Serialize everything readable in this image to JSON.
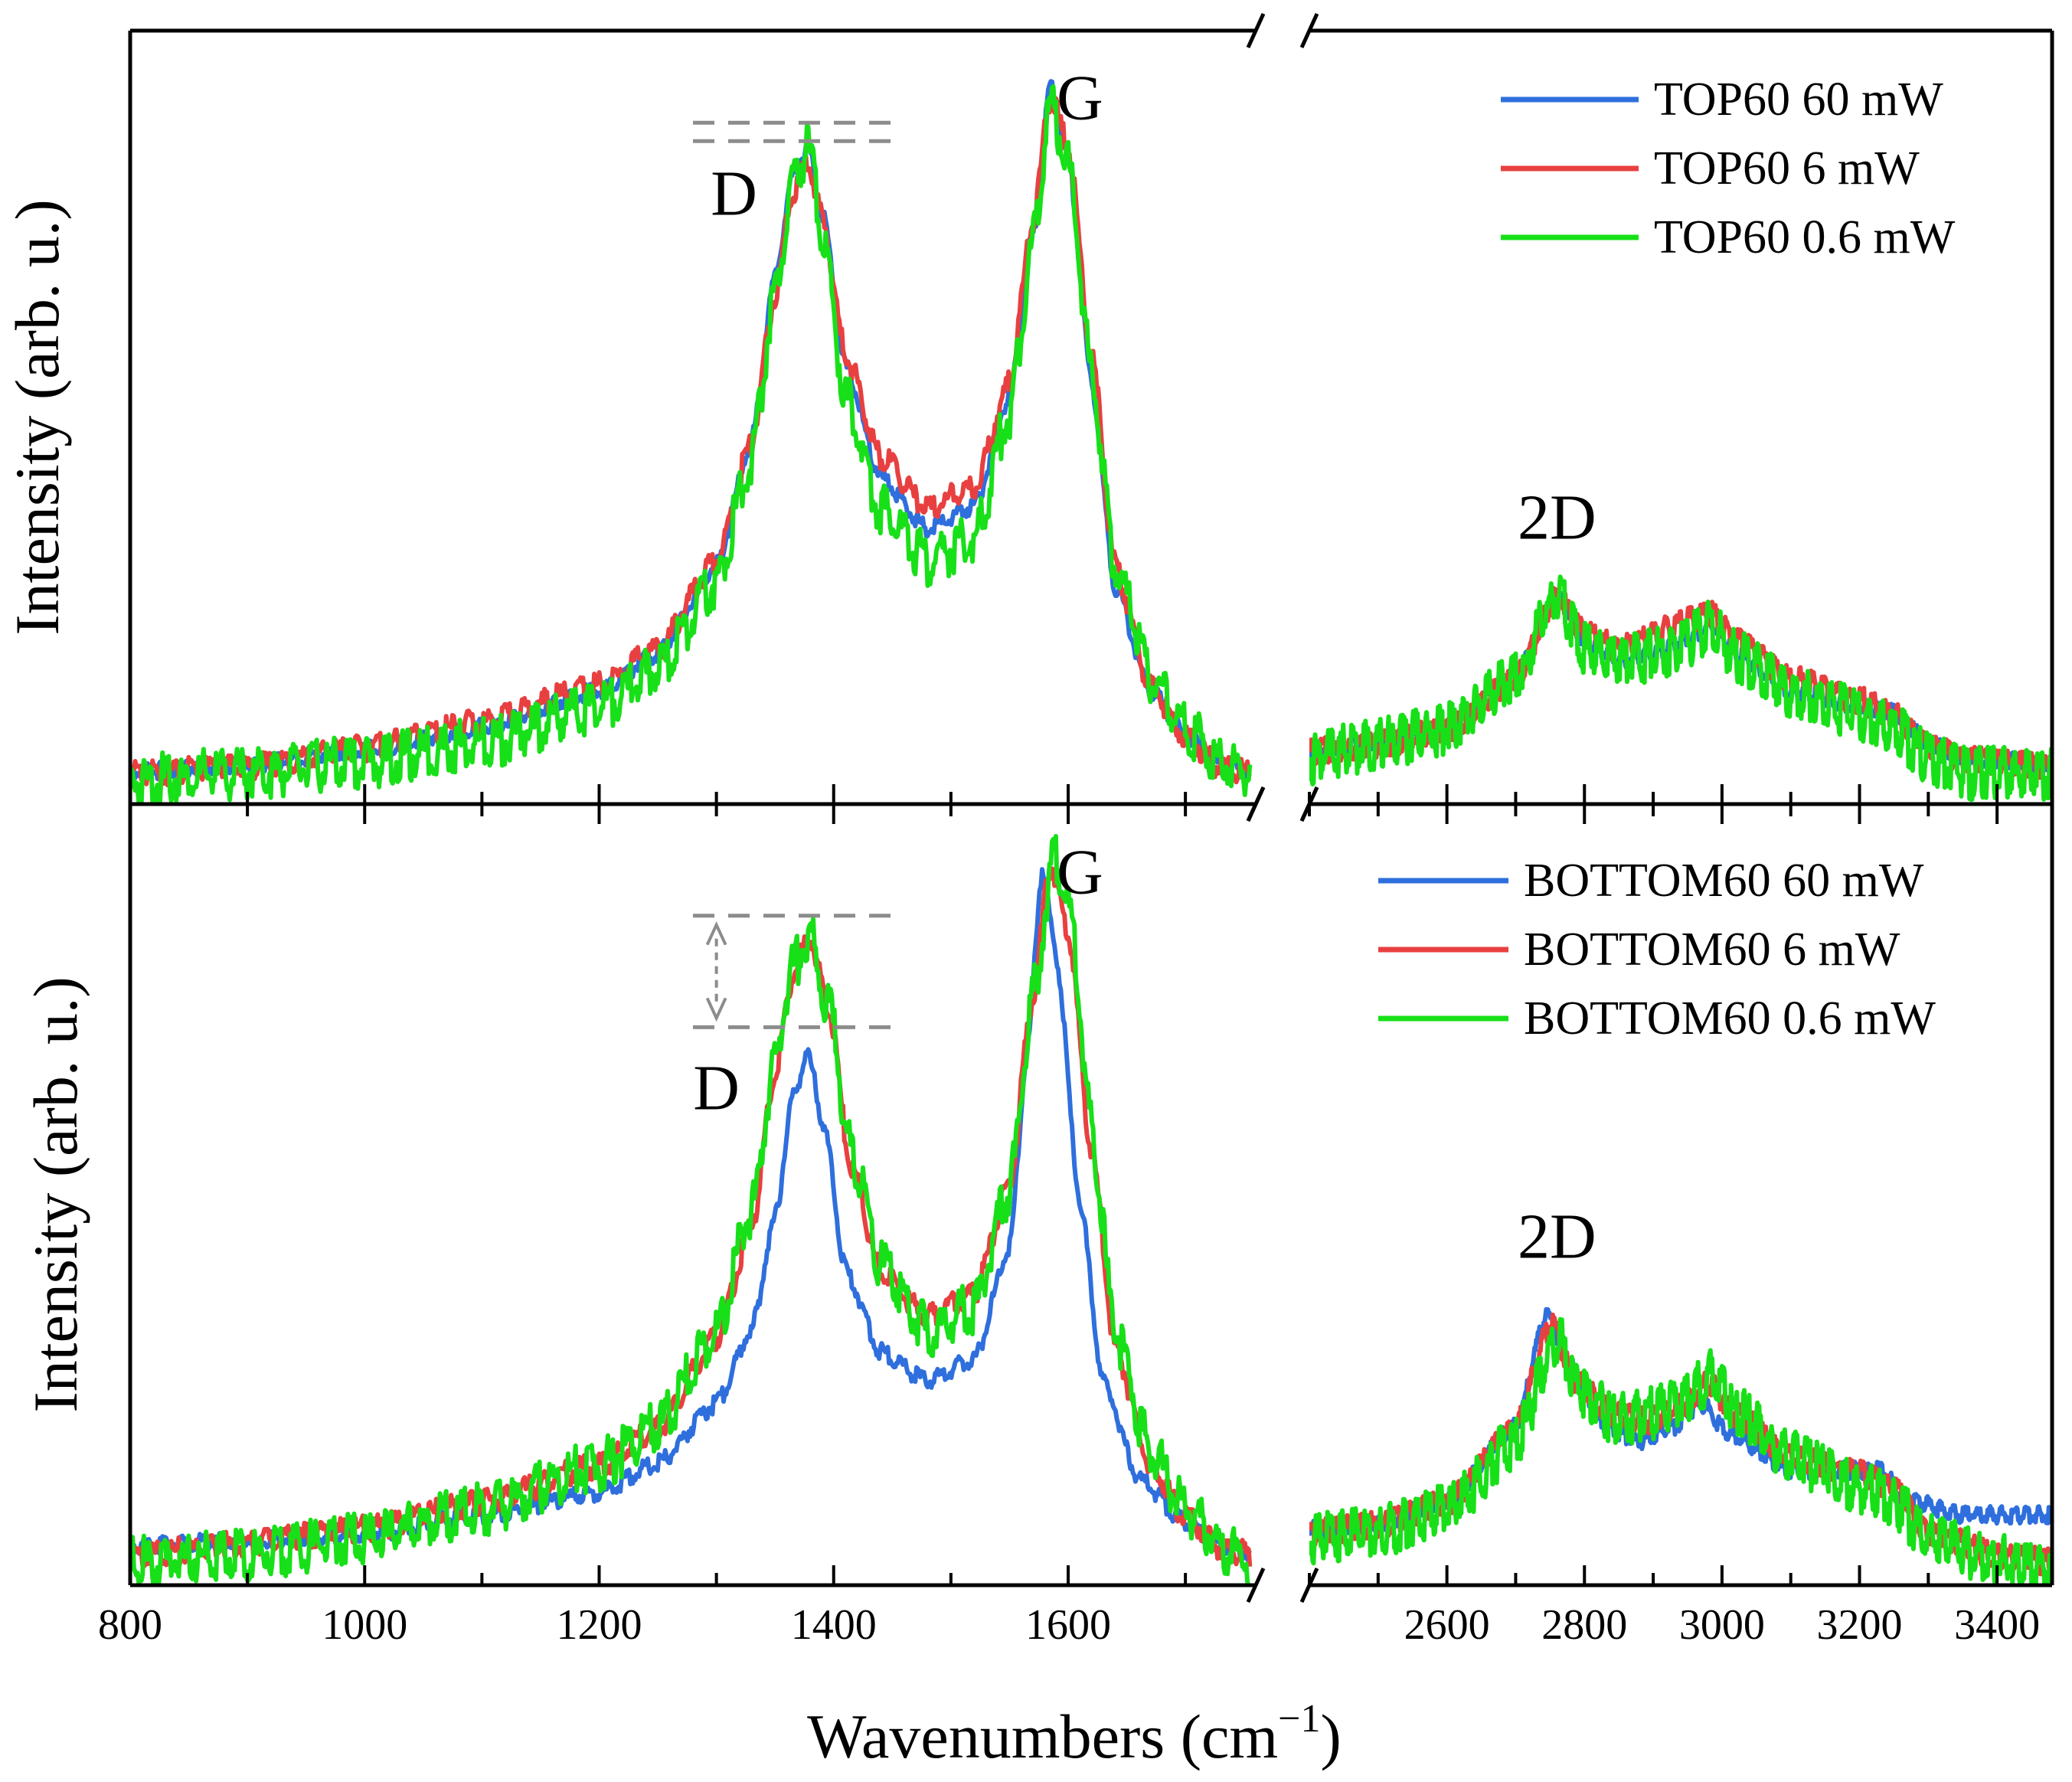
{
  "chart_data": {
    "type": "line",
    "xlabel_main": "Wavenumbers (cm",
    "xlabel_sup": "−1",
    "xlabel_close": ")",
    "x_segments": [
      {
        "xlim": [
          800,
          1760
        ],
        "ticks": [
          800,
          1000,
          1200,
          1400,
          1600
        ],
        "tick_labels": [
          "800",
          "1000",
          "1200",
          "1400",
          "1600"
        ]
      },
      {
        "xlim": [
          2400,
          3480
        ],
        "ticks": [
          2600,
          2800,
          3000,
          3200,
          3400
        ],
        "tick_labels": [
          "2600",
          "2800",
          "3000",
          "3200",
          "3400"
        ]
      }
    ],
    "panels": [
      {
        "id": "top",
        "ylabel": "Intensity (arb. u.)",
        "ylim": [
          0,
          1.05
        ],
        "peak_labels": [
          {
            "text": "D",
            "x": 1315,
            "y": 0.8
          },
          {
            "text": "G",
            "x": 1610,
            "y": 0.93
          },
          {
            "text": "2D",
            "x": 2760,
            "y": 0.36
          }
        ],
        "dashed_reference": {
          "x_range": [
            1280,
            1460
          ],
          "y": [
            0.925,
            0.9
          ]
        },
        "legend": {
          "position": "top-right",
          "entries": [
            "TOP60 60 mW",
            "TOP60 6 mW",
            "TOP60 0.6 mW"
          ]
        },
        "series": [
          {
            "name": "TOP60 60 mW",
            "color": "#2f6fdd",
            "segments": [
              {
                "x": [
                  800,
                  900,
                  1000,
                  1100,
                  1200,
                  1250,
                  1300,
                  1330,
                  1350,
                  1365,
                  1378,
                  1390,
                  1410,
                  1440,
                  1480,
                  1520,
                  1550,
                  1570,
                  1585,
                  1600,
                  1620,
                  1640,
                  1670,
                  1700,
                  1730,
                  1755
                ],
                "y": [
                  0.05,
                  0.06,
                  0.08,
                  0.11,
                  0.16,
                  0.21,
                  0.33,
                  0.5,
                  0.72,
                  0.86,
                  0.9,
                  0.81,
                  0.6,
                  0.45,
                  0.38,
                  0.41,
                  0.56,
                  0.78,
                  0.98,
                  0.88,
                  0.58,
                  0.3,
                  0.16,
                  0.1,
                  0.06,
                  0.05
                ]
              },
              {
                "x": [
                  2400,
                  2500,
                  2600,
                  2700,
                  2760,
                  2800,
                  2850,
                  2900,
                  2950,
                  2985,
                  3020,
                  3100,
                  3200,
                  3250,
                  3300,
                  3350,
                  3480
                ],
                "y": [
                  0.08,
                  0.09,
                  0.11,
                  0.18,
                  0.29,
                  0.23,
                  0.2,
                  0.21,
                  0.23,
                  0.25,
                  0.21,
                  0.16,
                  0.14,
                  0.13,
                  0.09,
                  0.07,
                  0.06
                ]
              }
            ]
          },
          {
            "name": "TOP60 6 mW",
            "color": "#e84040",
            "segments": [
              {
                "x": [
                  800,
                  900,
                  1000,
                  1100,
                  1200,
                  1250,
                  1300,
                  1330,
                  1350,
                  1365,
                  1378,
                  1390,
                  1410,
                  1440,
                  1480,
                  1520,
                  1550,
                  1570,
                  1585,
                  1600,
                  1620,
                  1640,
                  1670,
                  1700,
                  1730,
                  1755
                ],
                "y": [
                  0.05,
                  0.06,
                  0.085,
                  0.12,
                  0.17,
                  0.22,
                  0.34,
                  0.5,
                  0.7,
                  0.84,
                  0.88,
                  0.81,
                  0.62,
                  0.48,
                  0.41,
                  0.44,
                  0.58,
                  0.8,
                  0.97,
                  0.9,
                  0.62,
                  0.33,
                  0.17,
                  0.1,
                  0.06,
                  0.05
                ]
              },
              {
                "x": [
                  2400,
                  2500,
                  2600,
                  2700,
                  2760,
                  2800,
                  2850,
                  2900,
                  2950,
                  2985,
                  3020,
                  3100,
                  3200,
                  3250,
                  3300,
                  3350,
                  3480
                ],
                "y": [
                  0.08,
                  0.09,
                  0.11,
                  0.18,
                  0.29,
                  0.24,
                  0.22,
                  0.24,
                  0.26,
                  0.27,
                  0.23,
                  0.18,
                  0.15,
                  0.13,
                  0.09,
                  0.07,
                  0.06
                ]
              }
            ]
          },
          {
            "name": "TOP60 0.6 mW",
            "color": "#18e018",
            "segments": [
              {
                "x": [
                  800,
                  900,
                  1000,
                  1100,
                  1200,
                  1250,
                  1300,
                  1330,
                  1350,
                  1365,
                  1378,
                  1390,
                  1410,
                  1440,
                  1480,
                  1520,
                  1550,
                  1570,
                  1585,
                  1600,
                  1620,
                  1640,
                  1670,
                  1700,
                  1730,
                  1755
                ],
                "y": [
                  0.05,
                  0.06,
                  0.075,
                  0.1,
                  0.15,
                  0.2,
                  0.32,
                  0.49,
                  0.71,
                  0.86,
                  0.91,
                  0.8,
                  0.57,
                  0.42,
                  0.35,
                  0.38,
                  0.55,
                  0.78,
                  0.97,
                  0.89,
                  0.6,
                  0.34,
                  0.19,
                  0.12,
                  0.08,
                  0.06
                ]
              },
              {
                "x": [
                  2400,
                  2500,
                  2600,
                  2700,
                  2760,
                  2800,
                  2850,
                  2900,
                  2950,
                  2985,
                  3020,
                  3100,
                  3200,
                  3250,
                  3300,
                  3350,
                  3480
                ],
                "y": [
                  0.08,
                  0.1,
                  0.12,
                  0.19,
                  0.3,
                  0.23,
                  0.21,
                  0.22,
                  0.24,
                  0.26,
                  0.22,
                  0.17,
                  0.14,
                  0.12,
                  0.08,
                  0.06,
                  0.06
                ]
              }
            ]
          }
        ]
      },
      {
        "id": "bottom",
        "ylabel": "Intensity (arb. u.)",
        "ylim": [
          0,
          1.05
        ],
        "peak_labels": [
          {
            "text": "D",
            "x": 1300,
            "y": 0.64
          },
          {
            "text": "G",
            "x": 1610,
            "y": 0.93
          },
          {
            "text": "2D",
            "x": 2760,
            "y": 0.44
          }
        ],
        "dashed_reference": {
          "x_range": [
            1280,
            1460
          ],
          "y": [
            0.9,
            0.75
          ]
        },
        "legend": {
          "position": "top-right",
          "entries": [
            "BOTTOM60 60 mW",
            "BOTTOM60 6 mW",
            "BOTTOM60 0.6 mW"
          ]
        },
        "series": [
          {
            "name": "BOTTOM60 60 mW",
            "color": "#2f6fdd",
            "segments": [
              {
                "x": [
                  800,
                  900,
                  1000,
                  1100,
                  1200,
                  1250,
                  1300,
                  1330,
                  1350,
                  1365,
                  1378,
                  1392,
                  1410,
                  1440,
                  1480,
                  1520,
                  1550,
                  1565,
                  1578,
                  1590,
                  1610,
                  1630,
                  1660,
                  1700,
                  1730,
                  1755
                ],
                "y": [
                  0.06,
                  0.065,
                  0.075,
                  0.1,
                  0.13,
                  0.17,
                  0.25,
                  0.35,
                  0.5,
                  0.66,
                  0.72,
                  0.62,
                  0.43,
                  0.32,
                  0.28,
                  0.31,
                  0.46,
                  0.72,
                  0.97,
                  0.85,
                  0.52,
                  0.28,
                  0.15,
                  0.09,
                  0.06,
                  0.05
                ]
              },
              {
                "x": [
                  2400,
                  2500,
                  2600,
                  2700,
                  2745,
                  2780,
                  2830,
                  2880,
                  2930,
                  2970,
                  3010,
                  3100,
                  3200,
                  3230,
                  3270,
                  3350,
                  3480
                ],
                "y": [
                  0.08,
                  0.09,
                  0.12,
                  0.22,
                  0.37,
                  0.3,
                  0.22,
                  0.2,
                  0.22,
                  0.25,
                  0.21,
                  0.16,
                  0.16,
                  0.16,
                  0.12,
                  0.1,
                  0.1
                ]
              }
            ]
          },
          {
            "name": "BOTTOM60 6 mW",
            "color": "#e84040",
            "segments": [
              {
                "x": [
                  800,
                  900,
                  1000,
                  1100,
                  1200,
                  1250,
                  1300,
                  1330,
                  1350,
                  1365,
                  1380,
                  1395,
                  1415,
                  1440,
                  1480,
                  1520,
                  1550,
                  1570,
                  1585,
                  1600,
                  1620,
                  1640,
                  1670,
                  1700,
                  1730,
                  1755
                ],
                "y": [
                  0.05,
                  0.065,
                  0.085,
                  0.12,
                  0.17,
                  0.22,
                  0.34,
                  0.49,
                  0.7,
                  0.83,
                  0.88,
                  0.79,
                  0.57,
                  0.43,
                  0.37,
                  0.4,
                  0.55,
                  0.8,
                  0.98,
                  0.89,
                  0.59,
                  0.33,
                  0.17,
                  0.1,
                  0.06,
                  0.05
                ]
              },
              {
                "x": [
                  2400,
                  2500,
                  2600,
                  2700,
                  2750,
                  2790,
                  2840,
                  2890,
                  2940,
                  2980,
                  3020,
                  3100,
                  3200,
                  3250,
                  3300,
                  3400,
                  3480
                ],
                "y": [
                  0.08,
                  0.09,
                  0.12,
                  0.22,
                  0.36,
                  0.28,
                  0.24,
                  0.23,
                  0.25,
                  0.28,
                  0.24,
                  0.18,
                  0.16,
                  0.14,
                  0.08,
                  0.05,
                  0.04
                ]
              }
            ]
          },
          {
            "name": "BOTTOM60 0.6 mW",
            "color": "#18e018",
            "segments": [
              {
                "x": [
                  800,
                  900,
                  1000,
                  1100,
                  1200,
                  1250,
                  1300,
                  1330,
                  1350,
                  1365,
                  1380,
                  1395,
                  1415,
                  1440,
                  1480,
                  1520,
                  1550,
                  1570,
                  1588,
                  1602,
                  1620,
                  1640,
                  1670,
                  1700,
                  1730,
                  1755
                ],
                "y": [
                  0.05,
                  0.06,
                  0.08,
                  0.12,
                  0.18,
                  0.23,
                  0.36,
                  0.52,
                  0.72,
                  0.85,
                  0.89,
                  0.8,
                  0.6,
                  0.45,
                  0.36,
                  0.39,
                  0.55,
                  0.81,
                  1.0,
                  0.92,
                  0.63,
                  0.36,
                  0.2,
                  0.12,
                  0.07,
                  0.05
                ]
              },
              {
                "x": [
                  2400,
                  2500,
                  2600,
                  2700,
                  2760,
                  2800,
                  2850,
                  2900,
                  2950,
                  2985,
                  3020,
                  3100,
                  3200,
                  3250,
                  3300,
                  3400,
                  3480
                ],
                "y": [
                  0.08,
                  0.09,
                  0.12,
                  0.21,
                  0.35,
                  0.27,
                  0.24,
                  0.25,
                  0.27,
                  0.3,
                  0.25,
                  0.19,
                  0.15,
                  0.13,
                  0.08,
                  0.05,
                  0.04
                ]
              }
            ]
          }
        ]
      }
    ]
  }
}
